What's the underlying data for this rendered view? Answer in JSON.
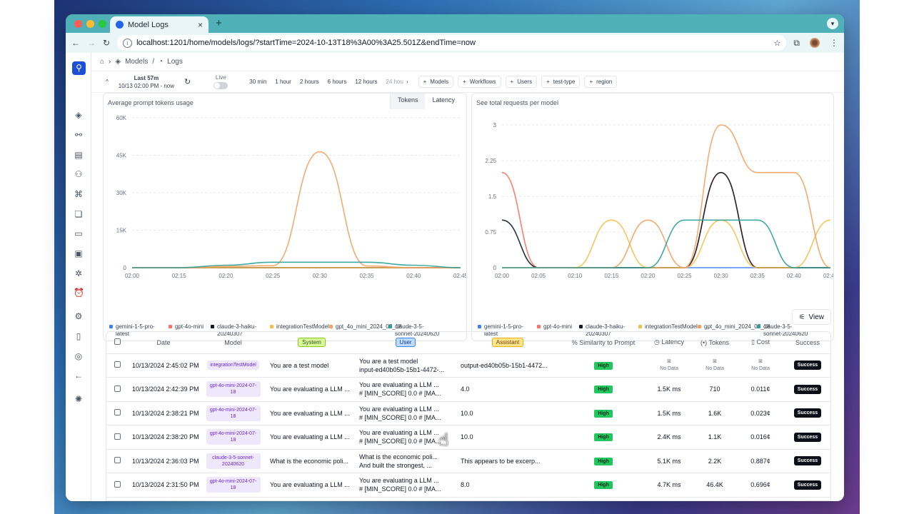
{
  "browser": {
    "tab_title": "Model Logs",
    "url": "localhost:1201/home/models/logs/?startTime=2024-10-13T18%3A00%3A25.501Z&endTime=now"
  },
  "breadcrumb": {
    "models": "Models",
    "logs": "Logs"
  },
  "filters": {
    "range_title": "Last 57m",
    "range_sub": "10/13 02:00 PM - now",
    "live_label": "Live",
    "times": [
      "30 min",
      "1 hour",
      "2 hours",
      "6 hours",
      "12 hours",
      "24 hou"
    ],
    "buttons": [
      "Models",
      "Workflows",
      "Users",
      "test-type",
      "region"
    ]
  },
  "left_chart": {
    "subtitle": "Average prompt tokens usage",
    "toggle": [
      "Tokens",
      "Latency"
    ]
  },
  "right_chart": {
    "subtitle": "See total requests per model"
  },
  "view_button": "View",
  "colors": {
    "gemini": "#3b82f6",
    "gpt4omini": "#f97362",
    "haiku": "#111827",
    "integration": "#f5c04a",
    "gpt4o_0718": "#f4a261",
    "sonnet": "#2aa198"
  },
  "chart_data": [
    {
      "type": "line",
      "title": "Average prompt tokens usage",
      "x": [
        "02:00",
        "02:15",
        "02:20",
        "02:25",
        "02:30",
        "02:35",
        "02:40",
        "02:45"
      ],
      "ylim": [
        0,
        60000
      ],
      "yticks": [
        "0",
        "15K",
        "30K",
        "45K",
        "60K"
      ],
      "series": [
        {
          "name": "gemini-1-5-pro-latest",
          "values": [
            0,
            0,
            0,
            0,
            0,
            0,
            0,
            0
          ]
        },
        {
          "name": "gpt-4o-mini",
          "values": [
            0,
            0,
            0,
            0,
            0,
            0,
            0,
            0
          ]
        },
        {
          "name": "claude-3-haiku-20240307",
          "values": [
            0,
            0,
            0,
            0,
            0,
            0,
            0,
            0
          ]
        },
        {
          "name": "integrationTestModel",
          "values": [
            0,
            0,
            0,
            0,
            0,
            0,
            0,
            0
          ]
        },
        {
          "name": "gpt_4o_mini_2024_07_18",
          "values": [
            0,
            0,
            500,
            800,
            46400,
            700,
            0,
            0
          ]
        },
        {
          "name": "claude-3-5-sonnet-20240620",
          "values": [
            0,
            0,
            1000,
            2200,
            2200,
            2200,
            1000,
            0
          ]
        }
      ]
    },
    {
      "type": "line",
      "title": "See total requests per model",
      "x": [
        "02:00",
        "02:05",
        "02:10",
        "02:15",
        "02:20",
        "02:25",
        "02:30",
        "02:35",
        "02:40",
        "02:45"
      ],
      "ylim": [
        0,
        3
      ],
      "yticks": [
        "0",
        "0.75",
        "1.5",
        "2.25",
        "3"
      ],
      "series": [
        {
          "name": "gemini-1-5-pro-latest",
          "values": [
            0,
            0,
            0,
            0,
            0,
            0,
            0,
            0,
            0,
            0
          ]
        },
        {
          "name": "gpt-4o-mini",
          "values": [
            2,
            0,
            0,
            0,
            0,
            0,
            2,
            0,
            0,
            0
          ]
        },
        {
          "name": "claude-3-haiku-20240307",
          "values": [
            1,
            0,
            0,
            0,
            0,
            0,
            2,
            0,
            0,
            0
          ]
        },
        {
          "name": "integrationTestModel",
          "values": [
            0,
            0,
            0,
            1,
            0,
            0,
            1,
            0,
            0,
            1
          ]
        },
        {
          "name": "gpt_4o_mini_2024_07_18",
          "values": [
            0,
            0,
            0,
            0,
            1,
            0,
            3,
            2,
            2,
            0
          ]
        },
        {
          "name": "claude-3-5-sonnet-20240620",
          "values": [
            0,
            0,
            0,
            0,
            0,
            1,
            1,
            1,
            0,
            0
          ]
        }
      ]
    }
  ],
  "table": {
    "headers": {
      "date": "Date",
      "model": "Model",
      "system": "System",
      "user": "User",
      "assistant": "Assistant",
      "similarity": "Similarity to Prompt",
      "latency": "Latency",
      "tokens": "Tokens",
      "cost": "Cost",
      "success": "Success"
    },
    "rows": [
      {
        "date": "10/13/2024 2:45:02 PM",
        "model": "integrationTestModel",
        "system": "You are a test model",
        "user1": "You are a test model",
        "user2": "input-ed40b05b-15b1-4472-...",
        "assistant": "output-ed40b05b-15b1-4472...",
        "similarity": "High",
        "latency": "No Data",
        "tokens": "No Data",
        "cost": "No Data",
        "success": "Success"
      },
      {
        "date": "10/13/2024 2:42:39 PM",
        "model": "gpt-4o-mini-2024-07-18",
        "system": "You are evaluating a LLM ...",
        "user1": "You are evaluating a LLM ...",
        "user2": "# [MIN_SCORE] 0.0 # [MA...",
        "assistant": "4.0",
        "similarity": "High",
        "latency": "1.5K ms",
        "tokens": "710",
        "cost": "0.011¢",
        "success": "Success"
      },
      {
        "date": "10/13/2024 2:38:21 PM",
        "model": "gpt-4o-mini-2024-07-18",
        "system": "You are evaluating a LLM ...",
        "user1": "You are evaluating a LLM ...",
        "user2": "# [MIN_SCORE] 0.0 # [MA...",
        "assistant": "10.0",
        "similarity": "High",
        "latency": "1.5K ms",
        "tokens": "1.6K",
        "cost": "0.023¢",
        "success": "Success"
      },
      {
        "date": "10/13/2024 2:38:20 PM",
        "model": "gpt-4o-mini-2024-07-18",
        "system": "You are evaluating a LLM ...",
        "user1": "You are evaluating a LLM ...",
        "user2": "# [MIN_SCORE] 0.0 # [MA...",
        "assistant": "10.0",
        "similarity": "High",
        "latency": "2.4K ms",
        "tokens": "1.1K",
        "cost": "0.016¢",
        "success": "Success"
      },
      {
        "date": "10/13/2024 2:36:03 PM",
        "model": "claude-3-5-sonnet-20240620",
        "system": "What is the economic poli...",
        "user1": "What is the economic poli...",
        "user2": "And built the strongest, ...",
        "assistant": "This appears to be excerp...",
        "similarity": "High",
        "latency": "5.1K ms",
        "tokens": "2.2K",
        "cost": "0.887¢",
        "success": "Success"
      },
      {
        "date": "10/13/2024 2:31:50 PM",
        "model": "gpt-4o-mini-2024-07-18",
        "system": "You are evaluating a LLM ...",
        "user1": "You are evaluating a LLM ...",
        "user2": "# [MIN_SCORE] 0.0 # [MA...",
        "assistant": "8.0",
        "similarity": "High",
        "latency": "4.7K ms",
        "tokens": "46.4K",
        "cost": "0.696¢",
        "success": "Success"
      }
    ]
  }
}
